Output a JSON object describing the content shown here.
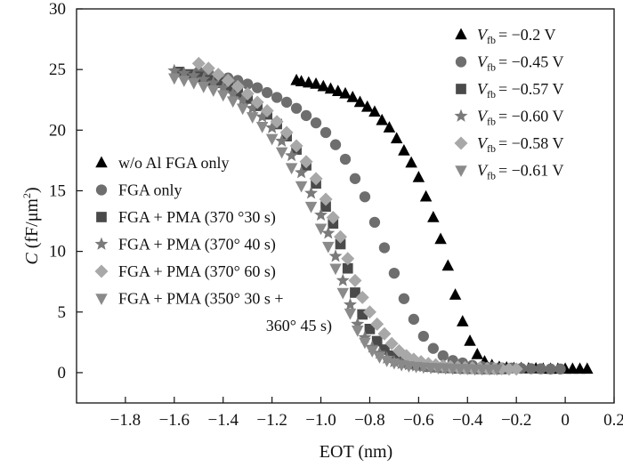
{
  "chart_data": {
    "type": "scatter",
    "xlabel": "EOT (nm)",
    "ylabel": {
      "var": "C",
      "unit_open": "(fF/μm",
      "sup": "2",
      "unit_close": ")"
    },
    "xlim": [
      -2.0,
      0.2
    ],
    "ylim": [
      -2.5,
      30
    ],
    "xticks": [
      -1.8,
      -1.6,
      -1.4,
      -1.2,
      -1.0,
      -0.8,
      -0.6,
      -0.4,
      -0.2,
      0,
      0.2
    ],
    "xtick_labels": [
      "−1.8",
      "−1.6",
      "−1.4",
      "−1.2",
      "−1.0",
      "−0.8",
      "−0.6",
      "−0.4",
      "−0.2",
      "0",
      "0.2"
    ],
    "yticks": [
      0,
      5,
      10,
      15,
      20,
      25,
      30
    ],
    "ytick_labels": [
      "0",
      "5",
      "10",
      "15",
      "20",
      "25",
      "30"
    ],
    "grid": false,
    "legend_left": [
      {
        "marker": "triangle",
        "text": "w/o Al FGA only"
      },
      {
        "marker": "circle",
        "text": "FGA only"
      },
      {
        "marker": "square",
        "text": "FGA + PMA (370 °30 s)"
      },
      {
        "marker": "star",
        "text": "FGA + PMA (370° 40 s)"
      },
      {
        "marker": "diamond",
        "text": "FGA + PMA (370° 60 s)"
      },
      {
        "marker": "tri-down",
        "text": "FGA + PMA (350° 30 s +"
      }
    ],
    "legend_left_continuation": "360° 45 s)",
    "legend_right": [
      {
        "marker": "triangle",
        "var": "V",
        "sub": "fb",
        "value": "= −0.2 V"
      },
      {
        "marker": "circle",
        "var": "V",
        "sub": "fb",
        "value": "= −0.45 V"
      },
      {
        "marker": "square",
        "var": "V",
        "sub": "fb",
        "value": "= −0.57 V"
      },
      {
        "marker": "star",
        "var": "V",
        "sub": "fb",
        "value": "= −0.60 V"
      },
      {
        "marker": "diamond",
        "var": "V",
        "sub": "fb",
        "value": "= −0.58 V"
      },
      {
        "marker": "tri-down",
        "var": "V",
        "sub": "fb",
        "value": "= −0.61 V"
      }
    ],
    "series": [
      {
        "marker": "triangle",
        "color": "#000000",
        "x": [
          -1.1,
          -1.08,
          -1.05,
          -1.02,
          -0.99,
          -0.96,
          -0.93,
          -0.9,
          -0.87,
          -0.84,
          -0.81,
          -0.78,
          -0.75,
          -0.72,
          -0.69,
          -0.66,
          -0.63,
          -0.6,
          -0.57,
          -0.54,
          -0.51,
          -0.48,
          -0.45,
          -0.42,
          -0.39,
          -0.36,
          -0.33,
          -0.3,
          -0.27,
          -0.24,
          -0.21,
          -0.18,
          -0.15,
          -0.12,
          -0.09,
          -0.06,
          -0.03,
          0.0,
          0.03,
          0.06,
          0.09
        ],
        "y": [
          24.1,
          24.0,
          23.9,
          23.8,
          23.6,
          23.4,
          23.2,
          23.0,
          22.7,
          22.3,
          21.9,
          21.5,
          20.8,
          20.2,
          19.3,
          18.3,
          17.3,
          16.1,
          14.5,
          12.8,
          11.0,
          8.8,
          6.4,
          4.2,
          2.6,
          1.5,
          0.9,
          0.6,
          0.45,
          0.4,
          0.35,
          0.35,
          0.32,
          0.32,
          0.3,
          0.3,
          0.3,
          0.3,
          0.3,
          0.3,
          0.3
        ]
      },
      {
        "marker": "circle",
        "color": "#6e6e6e",
        "x": [
          -1.5,
          -1.46,
          -1.42,
          -1.38,
          -1.34,
          -1.3,
          -1.26,
          -1.22,
          -1.18,
          -1.14,
          -1.1,
          -1.06,
          -1.02,
          -0.98,
          -0.94,
          -0.9,
          -0.86,
          -0.82,
          -0.78,
          -0.74,
          -0.7,
          -0.66,
          -0.62,
          -0.58,
          -0.54,
          -0.5,
          -0.46,
          -0.42,
          -0.38,
          -0.34,
          -0.3,
          -0.26,
          -0.22,
          -0.18,
          -0.14,
          -0.1,
          -0.06,
          -0.02
        ],
        "y": [
          24.8,
          24.7,
          24.5,
          24.3,
          24.1,
          23.8,
          23.5,
          23.1,
          22.7,
          22.3,
          21.8,
          21.2,
          20.6,
          19.8,
          18.8,
          17.6,
          16.0,
          14.5,
          12.4,
          10.3,
          8.2,
          6.1,
          4.4,
          3.0,
          2.0,
          1.4,
          1.0,
          0.8,
          0.6,
          0.5,
          0.45,
          0.4,
          0.38,
          0.35,
          0.33,
          0.32,
          0.3,
          0.3
        ]
      },
      {
        "marker": "square",
        "color": "#4a4a4a",
        "x": [
          -1.58,
          -1.54,
          -1.5,
          -1.46,
          -1.42,
          -1.38,
          -1.34,
          -1.3,
          -1.26,
          -1.22,
          -1.18,
          -1.14,
          -1.1,
          -1.06,
          -1.02,
          -0.98,
          -0.95,
          -0.92,
          -0.89,
          -0.86,
          -0.83,
          -0.8,
          -0.77,
          -0.74,
          -0.71,
          -0.68,
          -0.65,
          -0.62,
          -0.59,
          -0.56,
          -0.53,
          -0.5,
          -0.47,
          -0.44,
          -0.41,
          -0.38,
          -0.35,
          -0.32,
          -0.29,
          -0.26
        ],
        "y": [
          24.8,
          24.6,
          24.4,
          24.1,
          23.9,
          23.5,
          23.1,
          22.6,
          22.0,
          21.3,
          20.5,
          19.5,
          18.4,
          17.1,
          15.6,
          13.7,
          12.3,
          10.6,
          8.6,
          6.6,
          4.8,
          3.6,
          2.6,
          1.9,
          1.4,
          1.1,
          0.9,
          0.7,
          0.6,
          0.5,
          0.45,
          0.4,
          0.38,
          0.35,
          0.33,
          0.32,
          0.3,
          0.3,
          0.3,
          0.3
        ]
      },
      {
        "marker": "star",
        "color": "#7a7a7a",
        "x": [
          -1.6,
          -1.56,
          -1.52,
          -1.48,
          -1.44,
          -1.4,
          -1.36,
          -1.32,
          -1.28,
          -1.24,
          -1.2,
          -1.16,
          -1.12,
          -1.08,
          -1.04,
          -1.0,
          -0.97,
          -0.94,
          -0.91,
          -0.88,
          -0.85,
          -0.82,
          -0.79,
          -0.76,
          -0.73,
          -0.7,
          -0.67,
          -0.64,
          -0.61,
          -0.58,
          -0.55,
          -0.52,
          -0.49,
          -0.46,
          -0.43,
          -0.4,
          -0.37,
          -0.34,
          -0.31,
          -0.28
        ],
        "y": [
          24.9,
          24.7,
          24.5,
          24.2,
          23.9,
          23.5,
          23.0,
          22.5,
          21.8,
          21.1,
          20.2,
          19.1,
          17.9,
          16.5,
          14.8,
          13.0,
          11.5,
          9.6,
          7.6,
          5.6,
          4.0,
          2.9,
          2.1,
          1.6,
          1.2,
          0.9,
          0.75,
          0.65,
          0.55,
          0.5,
          0.45,
          0.42,
          0.4,
          0.38,
          0.35,
          0.33,
          0.32,
          0.3,
          0.3,
          0.3
        ]
      },
      {
        "marker": "diamond",
        "color": "#a8a8a8",
        "x": [
          -1.5,
          -1.46,
          -1.42,
          -1.38,
          -1.34,
          -1.3,
          -1.26,
          -1.22,
          -1.18,
          -1.14,
          -1.1,
          -1.06,
          -1.02,
          -0.98,
          -0.95,
          -0.92,
          -0.89,
          -0.86,
          -0.83,
          -0.8,
          -0.77,
          -0.74,
          -0.71,
          -0.68,
          -0.65,
          -0.62,
          -0.59,
          -0.56,
          -0.53,
          -0.5,
          -0.47,
          -0.44,
          -0.41,
          -0.38,
          -0.35,
          -0.32,
          -0.29,
          -0.26,
          -0.23,
          -0.2
        ],
        "y": [
          25.5,
          25.1,
          24.6,
          24.1,
          23.6,
          23.0,
          22.3,
          21.6,
          20.7,
          19.8,
          18.7,
          17.4,
          16.0,
          14.3,
          12.8,
          11.2,
          9.4,
          7.6,
          6.2,
          5.0,
          4.0,
          3.2,
          2.4,
          1.8,
          1.4,
          1.1,
          0.9,
          0.75,
          0.65,
          0.55,
          0.5,
          0.45,
          0.42,
          0.4,
          0.38,
          0.35,
          0.33,
          0.32,
          0.3,
          0.3
        ]
      },
      {
        "marker": "tri-down",
        "color": "#8a8a8a",
        "x": [
          -1.6,
          -1.56,
          -1.52,
          -1.48,
          -1.44,
          -1.4,
          -1.36,
          -1.32,
          -1.28,
          -1.24,
          -1.2,
          -1.16,
          -1.12,
          -1.08,
          -1.04,
          -1.0,
          -0.97,
          -0.94,
          -0.91,
          -0.88,
          -0.85,
          -0.82,
          -0.79,
          -0.76,
          -0.73,
          -0.7,
          -0.67,
          -0.64,
          -0.61,
          -0.58,
          -0.55,
          -0.52,
          -0.49,
          -0.46,
          -0.43,
          -0.4,
          -0.37,
          -0.34,
          -0.31,
          -0.28
        ],
        "y": [
          24.3,
          24.1,
          23.9,
          23.6,
          23.3,
          22.9,
          22.4,
          21.8,
          21.1,
          20.3,
          19.3,
          18.2,
          16.9,
          15.4,
          13.7,
          11.9,
          10.4,
          8.6,
          6.6,
          4.9,
          3.5,
          2.5,
          1.8,
          1.3,
          1.0,
          0.8,
          0.65,
          0.55,
          0.5,
          0.45,
          0.42,
          0.4,
          0.38,
          0.35,
          0.33,
          0.32,
          0.3,
          0.3,
          0.3,
          0.3
        ]
      }
    ]
  }
}
